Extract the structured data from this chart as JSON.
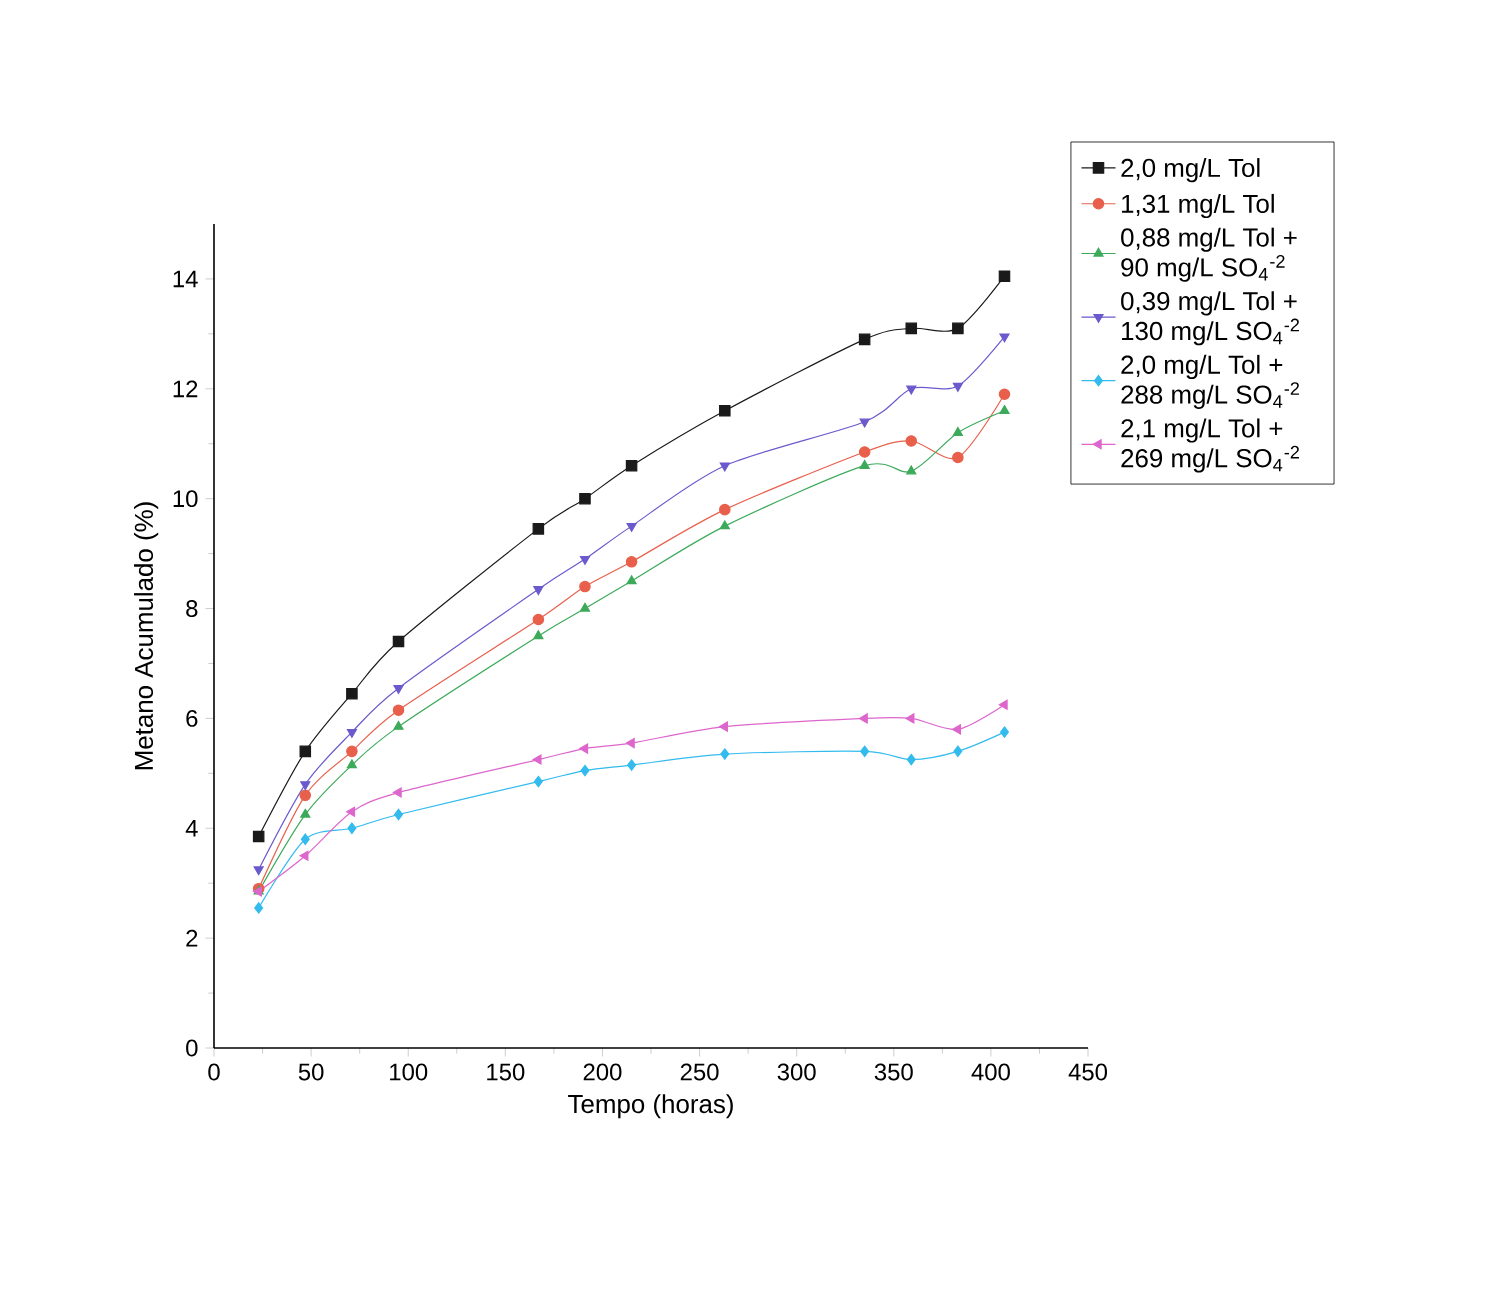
{
  "chart_data": {
    "type": "line",
    "xlabel": "Tempo (horas)",
    "ylabel": "Metano Acumulado (%)",
    "x": [
      23,
      47,
      71,
      95,
      167,
      191,
      215,
      263,
      335,
      359,
      383,
      407
    ],
    "series": [
      {
        "name": "2,0 mg/L Tol",
        "color": "#1a1a1a",
        "marker": "square",
        "values": [
          3.85,
          5.4,
          6.45,
          7.4,
          9.45,
          10.0,
          10.6,
          11.6,
          12.9,
          13.1,
          13.1,
          14.05
        ]
      },
      {
        "name": "1,31 mg/L Tol",
        "color": "#e8604c",
        "marker": "circle",
        "values": [
          2.9,
          4.6,
          5.4,
          6.15,
          7.8,
          8.4,
          8.85,
          9.8,
          10.85,
          11.05,
          10.75,
          11.9
        ]
      },
      {
        "name": "0,88 mg/L Tol + 90 mg/L SO$_{4}$$^{-2}$",
        "color": "#3caa5a",
        "marker": "triangle",
        "values": [
          2.85,
          4.25,
          5.15,
          5.85,
          7.5,
          8.0,
          8.5,
          9.5,
          10.6,
          10.5,
          11.2,
          11.6
        ]
      },
      {
        "name": "0,39 mg/L Tol + 130 mg/L SO$_{4}$$^{-2}$",
        "color": "#6a5acd",
        "marker": "triangle-down",
        "values": [
          3.25,
          4.8,
          5.75,
          6.55,
          8.35,
          8.9,
          9.5,
          10.6,
          11.4,
          12.0,
          12.05,
          12.95
        ]
      },
      {
        "name": "2,0 mg/L Tol + 288 mg/L SO$_{4}$$^{-2}$",
        "color": "#33bbee",
        "marker": "diamond",
        "values": [
          2.55,
          3.8,
          4.0,
          4.25,
          4.85,
          5.05,
          5.15,
          5.35,
          5.4,
          5.25,
          5.4,
          5.75
        ]
      },
      {
        "name": "2,1 mg/L Tol + 269 mg/L SO$_{4}$$^{-2}$",
        "color": "#dd66cc",
        "marker": "triangle-left",
        "values": [
          2.85,
          3.5,
          4.3,
          4.65,
          5.25,
          5.45,
          5.55,
          5.85,
          6.0,
          6.0,
          5.8,
          6.25
        ]
      }
    ],
    "xlim": [
      0,
      450
    ],
    "xticks": [
      0,
      50,
      100,
      150,
      200,
      250,
      300,
      350,
      400,
      450
    ],
    "ylim": [
      0,
      15
    ],
    "yticks": [
      0,
      2,
      4,
      6,
      8,
      10,
      12,
      14
    ],
    "legend": "top right",
    "grid": false,
    "line_style": "solid"
  }
}
